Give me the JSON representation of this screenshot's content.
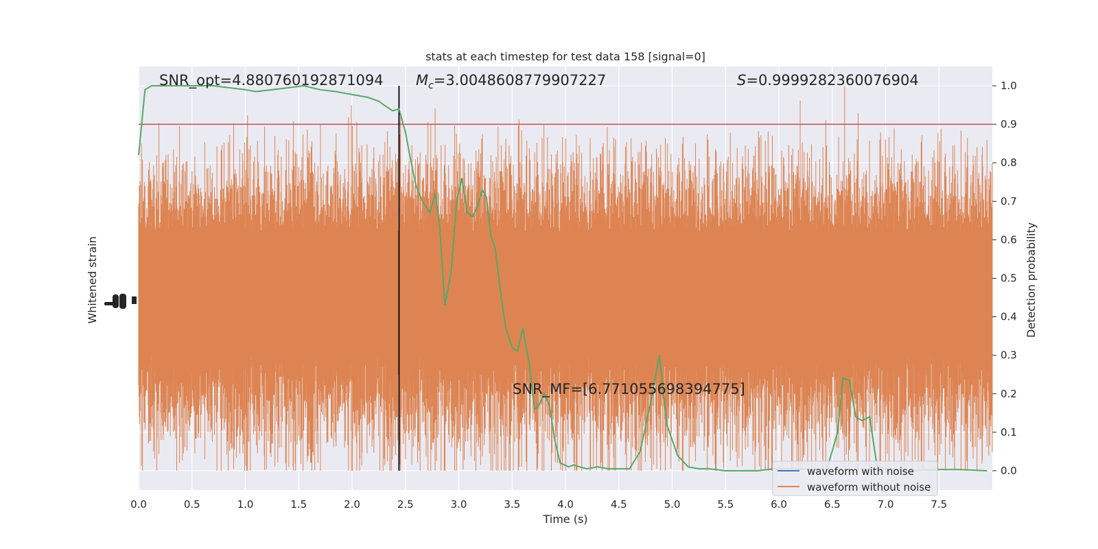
{
  "chart_data": {
    "type": "line",
    "title": "stats at each timestep for test data 158 [signal=0]",
    "xlabel": "Time (s)",
    "ylabel_left": "Whitened strain",
    "ylabel_right": "Detection probability",
    "xlim": [
      0,
      8
    ],
    "ylim_right": [
      -0.05,
      1.05
    ],
    "xticks": [
      "0.0",
      "0.5",
      "1.0",
      "1.5",
      "2.0",
      "2.5",
      "3.0",
      "3.5",
      "4.0",
      "4.5",
      "5.0",
      "5.5",
      "6.0",
      "6.5",
      "7.0",
      "7.5"
    ],
    "yticks_right": [
      "0.0",
      "0.1",
      "0.2",
      "0.3",
      "0.4",
      "0.5",
      "0.6",
      "0.7",
      "0.8",
      "0.9",
      "1.0"
    ],
    "grid": true,
    "legend_position": "lower-right",
    "annotations": {
      "snr_opt": "SNR_opt=4.880760192871094",
      "mc_symbol": "M",
      "mc_sub": "c",
      "mc_value": "=3.0048608779907227",
      "s_symbol": "S",
      "s_value": "=0.9999282360076904",
      "snr_mf": "SNR_MF=[6.771055698394775]"
    },
    "threshold": 0.9,
    "merger_time": 2.44,
    "series": [
      {
        "name": "waveform with noise",
        "color": "#4c72b0"
      },
      {
        "name": "waveform without noise",
        "color": "#dd8452"
      }
    ],
    "probability": {
      "color": "#55a868",
      "x": [
        0.0,
        0.06,
        0.12,
        0.25,
        0.4,
        0.55,
        0.7,
        0.85,
        1.0,
        1.1,
        1.25,
        1.4,
        1.55,
        1.7,
        1.85,
        1.95,
        2.05,
        2.15,
        2.25,
        2.3,
        2.38,
        2.44,
        2.5,
        2.54,
        2.6,
        2.66,
        2.73,
        2.78,
        2.82,
        2.87,
        2.93,
        2.98,
        3.03,
        3.08,
        3.13,
        3.18,
        3.22,
        3.26,
        3.3,
        3.34,
        3.39,
        3.44,
        3.5,
        3.55,
        3.6,
        3.66,
        3.71,
        3.75,
        3.8,
        3.85,
        3.9,
        3.95,
        4.03,
        4.08,
        4.13,
        4.2,
        4.3,
        4.4,
        4.5,
        4.6,
        4.7,
        4.8,
        4.88,
        4.95,
        5.05,
        5.15,
        5.25,
        5.35,
        5.5,
        5.8,
        5.95,
        6.1,
        6.3,
        6.45,
        6.55,
        6.6,
        6.66,
        6.72,
        6.78,
        6.85,
        6.92,
        6.98,
        7.05,
        7.2,
        7.5,
        7.7,
        7.95
      ],
      "y": [
        0.82,
        0.99,
        1.0,
        1.0,
        1.0,
        1.0,
        1.0,
        0.995,
        0.99,
        0.985,
        0.99,
        0.995,
        1.0,
        0.99,
        0.985,
        0.98,
        0.975,
        0.97,
        0.96,
        0.95,
        0.935,
        0.94,
        0.88,
        0.82,
        0.74,
        0.7,
        0.67,
        0.72,
        0.64,
        0.43,
        0.52,
        0.7,
        0.76,
        0.67,
        0.66,
        0.69,
        0.73,
        0.71,
        0.61,
        0.58,
        0.47,
        0.37,
        0.32,
        0.31,
        0.37,
        0.28,
        0.16,
        0.17,
        0.2,
        0.17,
        0.08,
        0.02,
        0.01,
        0.015,
        0.01,
        0.005,
        0.01,
        0.005,
        0.005,
        0.005,
        0.05,
        0.18,
        0.3,
        0.12,
        0.04,
        0.01,
        0.005,
        0.005,
        0.0,
        0.0,
        0.005,
        0.005,
        0.004,
        0.003,
        0.1,
        0.24,
        0.235,
        0.14,
        0.13,
        0.14,
        0.01,
        0.005,
        0.005,
        0.0,
        0.003,
        0.003,
        0.0
      ]
    }
  }
}
